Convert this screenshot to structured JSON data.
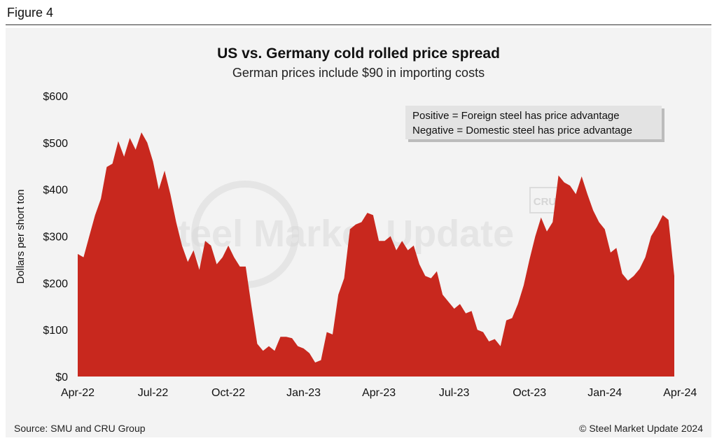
{
  "figure_label": "Figure 4",
  "chart_data": {
    "type": "area",
    "title": "US vs. Germany cold rolled price spread",
    "subtitle": "German prices include $90 in importing costs",
    "xlabel": "",
    "ylabel": "Dollars per short ton",
    "ylim": [
      0,
      600
    ],
    "yticks": [
      0,
      100,
      200,
      300,
      400,
      500,
      600
    ],
    "ytick_labels": [
      "$0",
      "$100",
      "$200",
      "$300",
      "$400",
      "$500",
      "$600"
    ],
    "xtick_labels": [
      "Apr-22",
      "Jul-22",
      "Oct-22",
      "Jan-23",
      "Apr-23",
      "Jul-23",
      "Oct-23",
      "Jan-24",
      "Apr-24"
    ],
    "xtick_weeks": [
      0,
      13,
      26,
      39,
      52,
      65,
      78,
      91,
      104
    ],
    "series": [
      {
        "name": "Price spread",
        "color": "#c8281e",
        "values": [
          262,
          255,
          300,
          345,
          380,
          448,
          455,
          503,
          470,
          510,
          485,
          522,
          500,
          460,
          400,
          440,
          390,
          330,
          280,
          245,
          270,
          228,
          290,
          280,
          240,
          255,
          280,
          255,
          235,
          235,
          150,
          70,
          55,
          65,
          55,
          85,
          85,
          82,
          65,
          60,
          50,
          30,
          35,
          95,
          90,
          175,
          210,
          315,
          325,
          330,
          350,
          345,
          290,
          290,
          300,
          270,
          290,
          270,
          280,
          240,
          215,
          210,
          225,
          175,
          160,
          145,
          155,
          135,
          140,
          100,
          95,
          75,
          80,
          65,
          120,
          125,
          155,
          195,
          250,
          300,
          340,
          310,
          330,
          430,
          415,
          408,
          390,
          428,
          390,
          355,
          330,
          315,
          265,
          275,
          220,
          205,
          215,
          230,
          255,
          300,
          320,
          345,
          335,
          215
        ]
      }
    ],
    "annotations": [
      "Positive = Foreign steel has price advantage",
      "Negative = Domestic steel has price advantage"
    ],
    "watermark": "Steel Market Update",
    "watermark_badge": "CRU"
  },
  "footer": {
    "source": "Source: SMU and CRU Group",
    "copyright": "© Steel Market Update 2024"
  },
  "colors": {
    "area": "#c8281e",
    "panel": "#f3f3f3",
    "note_box": "#e3e3e3"
  }
}
